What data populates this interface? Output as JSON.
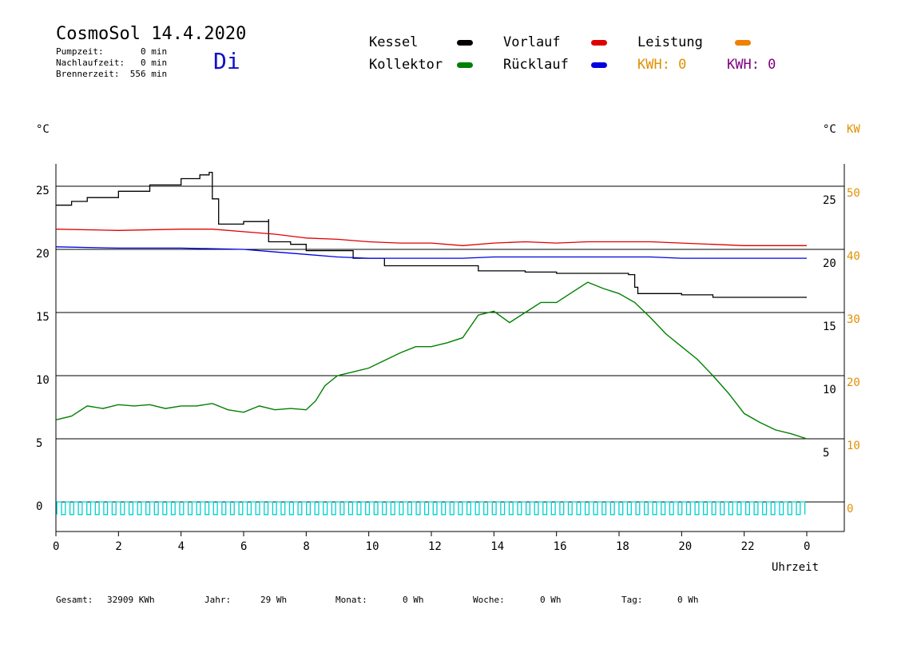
{
  "header": {
    "title": "CosmoSol 14.4.2020",
    "pumpzeit": "Pumpzeit:       0 min",
    "nachlaufzeit": "Nachlaufzeit:   0 min",
    "brennerzeit": "Brennerzeit:  556 min",
    "day": "Di"
  },
  "legend": {
    "kessel": "Kessel",
    "vorlauf": "Vorlauf",
    "leistung": "Leistung",
    "kollektor": "Kollektor",
    "ruecklauf": "Rücklauf",
    "kwh1": "KWH: 0",
    "kwh2": "KWH: 0"
  },
  "colors": {
    "kessel": "#000000",
    "vorlauf": "#e00000",
    "leistung": "#f08000",
    "kollektor": "#008000",
    "ruecklauf": "#0000e0",
    "kwh2": "#800080",
    "pump": "#00d0d0",
    "accent_axis": "#e09000"
  },
  "footer": {
    "gesamt_label": "Gesamt:",
    "gesamt_value": "32909 KWh",
    "jahr_label": "Jahr:",
    "jahr_value": "29 Wh",
    "monat_label": "Monat:",
    "monat_value": "0 Wh",
    "woche_label": "Woche:",
    "woche_value": "0 Wh",
    "tag_label": "Tag:",
    "tag_value": "0 Wh"
  },
  "chart_data": {
    "type": "line",
    "xlabel": "Uhrzeit",
    "ylabel_left": "°C",
    "ylabel_right_temp": "°C",
    "ylabel_right_power": "KW",
    "xlim": [
      0,
      24
    ],
    "ylim": [
      -1,
      27
    ],
    "x_tick_labels": [
      "0",
      "2",
      "4",
      "6",
      "8",
      "10",
      "12",
      "14",
      "16",
      "18",
      "20",
      "22",
      "0"
    ],
    "y_ticks_left": [
      0,
      5,
      10,
      15,
      20,
      25
    ],
    "y_ticks_right_temp": [
      5,
      10,
      15,
      20,
      25
    ],
    "y_ticks_right_power": [
      0,
      10,
      20,
      30,
      40,
      50
    ],
    "grid": "horizontal",
    "series": [
      {
        "name": "Kessel",
        "color": "#000000",
        "x": [
          0,
          0.5,
          1,
          2,
          3,
          4,
          4.6,
          4.9,
          5.0,
          5.2,
          6.0,
          6.8,
          6.8,
          7.5,
          8.0,
          9.5,
          10.5,
          12,
          13.5,
          13.5,
          15,
          16,
          17.5,
          18.3,
          18.5,
          18.6,
          19,
          20,
          20.8,
          21,
          22,
          23,
          24
        ],
        "y": [
          23.5,
          23.8,
          24.1,
          24.6,
          25.1,
          25.6,
          25.9,
          26.1,
          24.0,
          22.0,
          22.2,
          22.4,
          20.6,
          20.4,
          19.9,
          19.3,
          18.7,
          18.7,
          18.7,
          18.3,
          18.2,
          18.1,
          18.1,
          18.0,
          17.0,
          16.5,
          16.5,
          16.4,
          16.4,
          16.2,
          16.2,
          16.2,
          16.2
        ]
      },
      {
        "name": "Vorlauf",
        "color": "#e00000",
        "x": [
          0,
          2,
          4,
          5,
          6,
          7,
          8,
          9,
          10,
          11,
          12,
          13,
          14,
          15,
          16,
          17,
          18,
          19,
          20,
          21,
          22,
          23,
          24
        ],
        "y": [
          21.6,
          21.5,
          21.6,
          21.6,
          21.4,
          21.2,
          20.9,
          20.8,
          20.6,
          20.5,
          20.5,
          20.3,
          20.5,
          20.6,
          20.5,
          20.6,
          20.6,
          20.6,
          20.5,
          20.4,
          20.3,
          20.3,
          20.3
        ]
      },
      {
        "name": "Rücklauf",
        "color": "#0000e0",
        "x": [
          0,
          2,
          4,
          6,
          7,
          8,
          9,
          10,
          11,
          12,
          13,
          14,
          15,
          16,
          17,
          18,
          19,
          20,
          21,
          22,
          23,
          24
        ],
        "y": [
          20.2,
          20.1,
          20.1,
          20.0,
          19.8,
          19.6,
          19.4,
          19.3,
          19.3,
          19.3,
          19.3,
          19.4,
          19.4,
          19.4,
          19.4,
          19.4,
          19.4,
          19.3,
          19.3,
          19.3,
          19.3,
          19.3
        ]
      },
      {
        "name": "Kollektor",
        "color": "#008000",
        "x": [
          0,
          0.5,
          1,
          1.5,
          2,
          2.5,
          3,
          3.5,
          4,
          4.5,
          5,
          5.5,
          6,
          6.5,
          7,
          7.5,
          8,
          8.3,
          8.6,
          9,
          9.5,
          10,
          10.5,
          11,
          11.5,
          12,
          12.5,
          13,
          13.5,
          14,
          14.5,
          15,
          15.5,
          16,
          16.5,
          17,
          17.5,
          18,
          18.5,
          19,
          19.5,
          20,
          20.5,
          21,
          21.5,
          22,
          22.5,
          23,
          23.5,
          24
        ],
        "y": [
          6.5,
          6.8,
          7.6,
          7.4,
          7.7,
          7.6,
          7.7,
          7.4,
          7.6,
          7.6,
          7.8,
          7.3,
          7.1,
          7.6,
          7.3,
          7.4,
          7.3,
          8.0,
          9.2,
          10.0,
          10.3,
          10.6,
          11.2,
          11.8,
          12.3,
          12.3,
          12.6,
          13.0,
          14.8,
          15.1,
          14.2,
          15.0,
          15.8,
          15.8,
          16.6,
          17.4,
          16.9,
          16.5,
          15.8,
          14.6,
          13.3,
          12.3,
          11.3,
          10.0,
          8.6,
          7.0,
          6.3,
          5.7,
          5.4,
          5.0
        ]
      }
    ],
    "pump_signal": {
      "name": "Pumpe",
      "color": "#00d0d0",
      "level_on": 0,
      "level_off": -1,
      "period_h": 0.27
    }
  }
}
